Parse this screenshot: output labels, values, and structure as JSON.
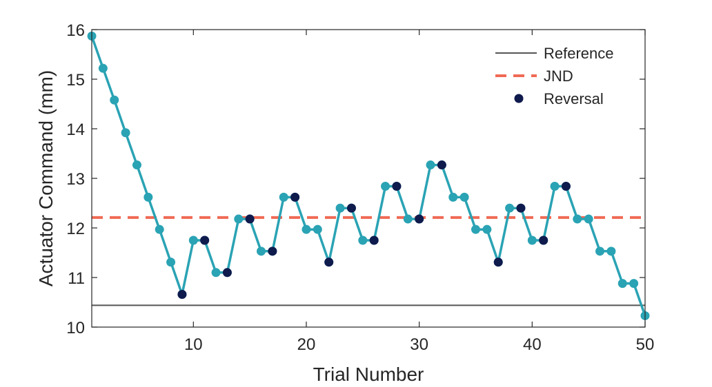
{
  "chart_data": {
    "type": "line",
    "title": "",
    "xlabel": "Trial Number",
    "ylabel": "Actuator Command (mm)",
    "xlim": [
      1,
      50
    ],
    "ylim": [
      10,
      16
    ],
    "xticks": [
      10,
      20,
      30,
      40,
      50
    ],
    "yticks": [
      10,
      11,
      12,
      13,
      14,
      15,
      16
    ],
    "grid": false,
    "legend_position": "top-right",
    "colors": {
      "series": "#2aa3b4",
      "reversal": "#0f1a4d",
      "reference": "#555555",
      "jnd": "#f06a55",
      "axis": "#262626"
    },
    "series": [
      {
        "x": [
          1,
          2,
          3,
          4,
          5,
          6,
          7,
          8,
          9,
          10,
          11,
          12,
          13,
          14,
          15,
          16,
          17,
          18,
          19,
          20,
          21,
          22,
          23,
          24,
          25,
          26,
          27,
          28,
          29,
          30,
          31,
          32,
          33,
          34,
          35,
          36,
          37,
          38,
          39,
          40,
          41,
          42,
          43,
          44,
          45,
          46,
          47,
          48,
          49,
          50
        ],
        "values": [
          15.87,
          15.22,
          14.58,
          13.92,
          13.27,
          12.62,
          11.97,
          11.31,
          10.66,
          11.75,
          11.75,
          11.1,
          11.1,
          12.18,
          12.18,
          11.53,
          11.53,
          12.62,
          12.62,
          11.97,
          11.97,
          11.31,
          12.4,
          12.4,
          11.75,
          11.75,
          12.84,
          12.84,
          12.18,
          12.18,
          13.27,
          13.27,
          12.62,
          12.62,
          11.97,
          11.97,
          11.31,
          12.4,
          12.4,
          11.75,
          11.75,
          12.84,
          12.84,
          12.18,
          12.18,
          11.53,
          11.53,
          10.88,
          10.88,
          10.23
        ]
      }
    ],
    "reversal_points": {
      "name": "Reversal",
      "x": [
        9,
        11,
        13,
        15,
        17,
        19,
        22,
        24,
        26,
        28,
        30,
        32,
        37,
        39,
        41,
        43
      ],
      "values": [
        10.66,
        11.75,
        11.1,
        12.18,
        11.53,
        12.62,
        11.31,
        12.4,
        11.75,
        12.84,
        12.18,
        13.27,
        11.31,
        12.4,
        11.75,
        12.84
      ]
    },
    "reference_line": {
      "name": "Reference",
      "value": 10.44
    },
    "jnd_line": {
      "name": "JND",
      "value": 12.21
    },
    "legend": [
      {
        "label": "Reference",
        "style": "solid-line"
      },
      {
        "label": "JND",
        "style": "dashed-line"
      },
      {
        "label": "Reversal",
        "style": "marker"
      }
    ]
  }
}
